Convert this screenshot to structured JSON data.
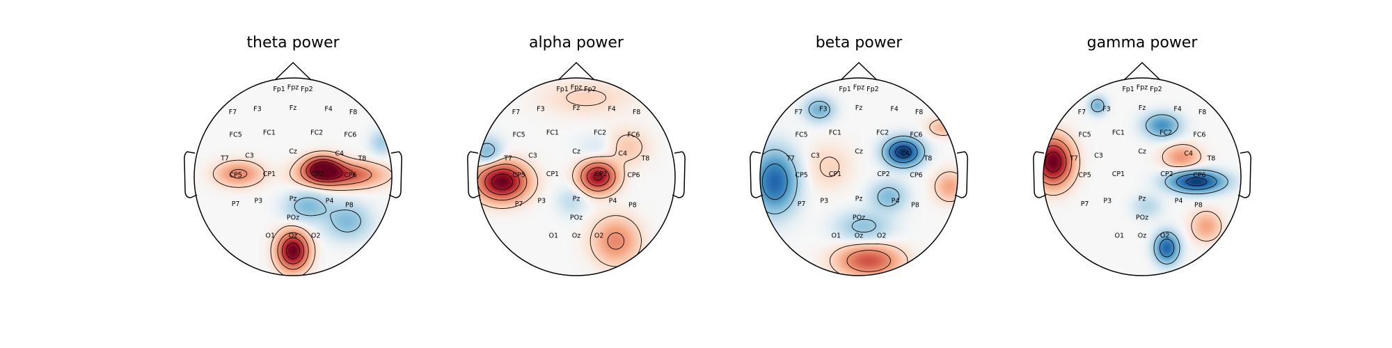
{
  "chart_data": [
    {
      "type": "heatmap",
      "title": "theta power",
      "colormap": "RdBu_r",
      "channels": [
        "Fp1",
        "Fpz",
        "Fp2",
        "F7",
        "F3",
        "Fz",
        "F4",
        "F8",
        "FC5",
        "FC1",
        "FC2",
        "FC6",
        "T7",
        "C3",
        "Cz",
        "C4",
        "T8",
        "CP5",
        "CP1",
        "CP2",
        "CP6",
        "P7",
        "P3",
        "Pz",
        "P4",
        "P8",
        "POz",
        "O1",
        "Oz",
        "O2"
      ],
      "blobs": [
        {
          "cx": 0.3,
          "cy": 0.08,
          "sx": 0.12,
          "sy": 0.08,
          "v": 1.0
        },
        {
          "cx": 0.0,
          "cy": -0.75,
          "sx": 0.1,
          "sy": 0.12,
          "v": 1.0
        },
        {
          "cx": 0.5,
          "cy": 0.02,
          "sx": 0.25,
          "sy": 0.08,
          "v": 0.6
        },
        {
          "cx": -0.55,
          "cy": 0.03,
          "sx": 0.15,
          "sy": 0.08,
          "v": 0.35
        },
        {
          "cx": 0.15,
          "cy": -0.3,
          "sx": 0.15,
          "sy": 0.1,
          "v": -0.3
        },
        {
          "cx": 0.55,
          "cy": -0.45,
          "sx": 0.15,
          "sy": 0.12,
          "v": -0.3
        },
        {
          "cx": 0.9,
          "cy": 0.35,
          "sx": 0.08,
          "sy": 0.08,
          "v": -0.2
        }
      ]
    },
    {
      "type": "heatmap",
      "title": "alpha power",
      "colormap": "RdBu_r",
      "channels": [
        "Fp1",
        "Fpz",
        "Fp2",
        "F7",
        "F3",
        "Fz",
        "F4",
        "F8",
        "FC5",
        "FC1",
        "FC2",
        "FC6",
        "T7",
        "C3",
        "Cz",
        "C4",
        "T8",
        "CP5",
        "CP1",
        "CP2",
        "CP6",
        "P7",
        "P3",
        "Pz",
        "P4",
        "P8",
        "POz",
        "O1",
        "Oz",
        "O2"
      ],
      "blobs": [
        {
          "cx": -0.75,
          "cy": -0.05,
          "sx": 0.16,
          "sy": 0.12,
          "v": 1.0
        },
        {
          "cx": 0.22,
          "cy": 0.0,
          "sx": 0.12,
          "sy": 0.1,
          "v": 0.85
        },
        {
          "cx": 0.1,
          "cy": 0.8,
          "sx": 0.3,
          "sy": 0.12,
          "v": 0.1
        },
        {
          "cx": 0.4,
          "cy": -0.65,
          "sx": 0.15,
          "sy": 0.15,
          "v": 0.35
        },
        {
          "cx": -0.9,
          "cy": 0.25,
          "sx": 0.1,
          "sy": 0.1,
          "v": -0.3
        },
        {
          "cx": -0.05,
          "cy": -0.25,
          "sx": 0.1,
          "sy": 0.1,
          "v": -0.12
        },
        {
          "cx": 0.5,
          "cy": 0.3,
          "sx": 0.15,
          "sy": 0.12,
          "v": 0.15
        },
        {
          "cx": 0.25,
          "cy": 0.3,
          "sx": 0.15,
          "sy": 0.1,
          "v": -0.08
        }
      ]
    },
    {
      "type": "heatmap",
      "title": "beta power",
      "colormap": "RdBu_r",
      "channels": [
        "Fp1",
        "Fpz",
        "Fp2",
        "F7",
        "F3",
        "Fz",
        "F4",
        "F8",
        "FC5",
        "FC1",
        "FC2",
        "FC6",
        "T7",
        "C3",
        "Cz",
        "C4",
        "T8",
        "CP5",
        "CP1",
        "CP2",
        "CP6",
        "P7",
        "P3",
        "Pz",
        "P4",
        "P8",
        "POz",
        "O1",
        "Oz",
        "O2"
      ],
      "blobs": [
        {
          "cx": 0.45,
          "cy": 0.25,
          "sx": 0.12,
          "sy": 0.09,
          "v": -1.0
        },
        {
          "cx": -0.85,
          "cy": -0.05,
          "sx": 0.14,
          "sy": 0.2,
          "v": -0.75
        },
        {
          "cx": -0.4,
          "cy": 0.68,
          "sx": 0.1,
          "sy": 0.08,
          "v": -0.35
        },
        {
          "cx": 0.3,
          "cy": -0.2,
          "sx": 0.12,
          "sy": 0.1,
          "v": -0.3
        },
        {
          "cx": 0.05,
          "cy": -0.5,
          "sx": 0.18,
          "sy": 0.1,
          "v": -0.25
        },
        {
          "cx": 0.1,
          "cy": -0.85,
          "sx": 0.2,
          "sy": 0.1,
          "v": 0.55
        },
        {
          "cx": 0.92,
          "cy": -0.1,
          "sx": 0.1,
          "sy": 0.1,
          "v": 0.25
        },
        {
          "cx": 0.85,
          "cy": 0.5,
          "sx": 0.1,
          "sy": 0.06,
          "v": 0.2
        },
        {
          "cx": -0.3,
          "cy": 0.1,
          "sx": 0.15,
          "sy": 0.15,
          "v": 0.1
        }
      ]
    },
    {
      "type": "heatmap",
      "title": "gamma power",
      "colormap": "RdBu_r",
      "channels": [
        "Fp1",
        "Fpz",
        "Fp2",
        "F7",
        "F3",
        "Fz",
        "F4",
        "F8",
        "FC5",
        "FC1",
        "FC2",
        "FC6",
        "T7",
        "C3",
        "Cz",
        "C4",
        "T8",
        "CP5",
        "CP1",
        "CP2",
        "CP6",
        "P7",
        "P3",
        "Pz",
        "P4",
        "P8",
        "POz",
        "O1",
        "Oz",
        "O2"
      ],
      "blobs": [
        {
          "cx": -0.9,
          "cy": 0.15,
          "sx": 0.12,
          "sy": 0.15,
          "v": 1.0
        },
        {
          "cx": 0.55,
          "cy": -0.05,
          "sx": 0.18,
          "sy": 0.07,
          "v": -0.95
        },
        {
          "cx": 0.25,
          "cy": -0.72,
          "sx": 0.08,
          "sy": 0.1,
          "v": -0.75
        },
        {
          "cx": 0.2,
          "cy": 0.52,
          "sx": 0.12,
          "sy": 0.08,
          "v": -0.5
        },
        {
          "cx": -0.45,
          "cy": 0.72,
          "sx": 0.06,
          "sy": 0.06,
          "v": -0.35
        },
        {
          "cx": 0.4,
          "cy": 0.2,
          "sx": 0.12,
          "sy": 0.08,
          "v": 0.3
        },
        {
          "cx": 0.65,
          "cy": -0.5,
          "sx": 0.1,
          "sy": 0.1,
          "v": 0.25
        },
        {
          "cx": 0.05,
          "cy": -0.3,
          "sx": 0.1,
          "sy": 0.08,
          "v": -0.15
        }
      ]
    }
  ]
}
